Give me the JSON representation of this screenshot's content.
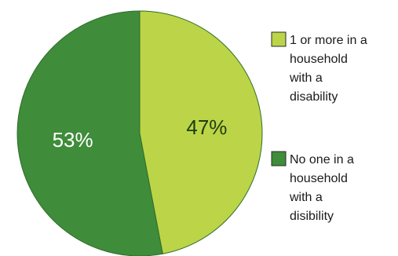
{
  "chart_data": {
    "type": "pie",
    "title": "",
    "slices": [
      {
        "name": "1 or more in a household with a disability",
        "value": 47,
        "label": "47%",
        "color": "#bcd447",
        "legend_lines": [
          "1 or more in a",
          "household",
          "with a",
          "disability"
        ]
      },
      {
        "name": "No one in a household with a disibility",
        "value": 53,
        "label": "53%",
        "color": "#3f8c3a",
        "legend_lines": [
          "No one in a",
          "household",
          "with a",
          "disibility"
        ]
      }
    ],
    "legend_position": "right",
    "label_colors": [
      "#1e3d10",
      "#ffffff"
    ]
  }
}
